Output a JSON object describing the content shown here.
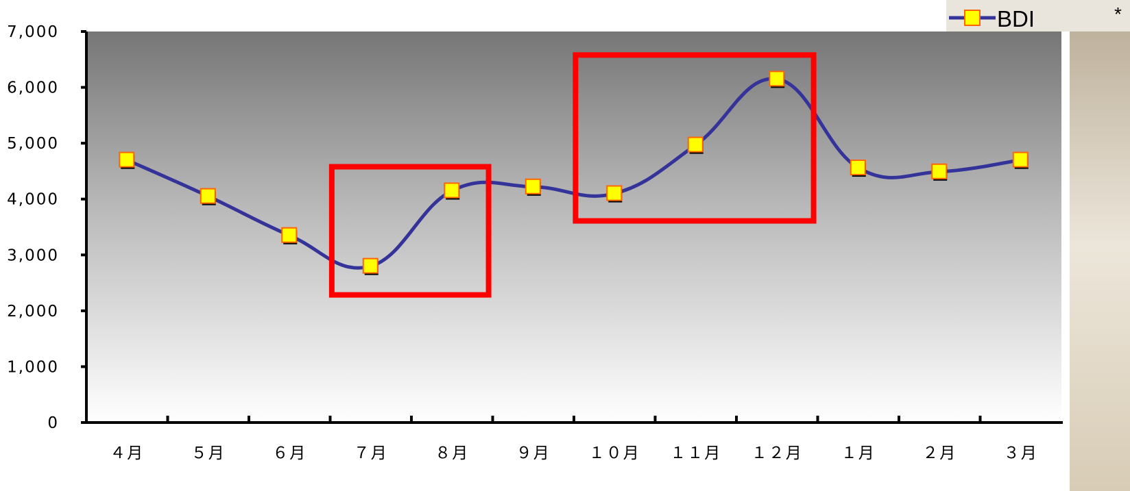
{
  "chart_data": {
    "type": "line",
    "title": "",
    "xlabel": "",
    "ylabel": "",
    "categories": [
      "4月",
      "5月",
      "6月",
      "7月",
      "8月",
      "9月",
      "10月",
      "11月",
      "12月",
      "1月",
      "2月",
      "3月"
    ],
    "category_display": [
      "４月",
      "５月",
      "６月",
      "７月",
      "８月",
      "９月",
      "１０月",
      "１１月",
      "１２月",
      "１月",
      "２月",
      "３月"
    ],
    "series": [
      {
        "name": "BDI",
        "values": [
          4700,
          4050,
          3350,
          2800,
          4150,
          4220,
          4100,
          4970,
          6150,
          4560,
          4490,
          4700
        ]
      }
    ],
    "ylim": [
      0,
      7000
    ],
    "y_ticks": [
      0,
      1000,
      2000,
      3000,
      4000,
      5000,
      6000,
      7000
    ],
    "y_tick_labels": [
      "0",
      "1,000",
      "2,000",
      "3,000",
      "4,000",
      "5,000",
      "6,000",
      "7,000"
    ],
    "grid": false,
    "legend_position": "top-right",
    "highlight_boxes": [
      {
        "from_category": "7月",
        "to_category": "8月"
      },
      {
        "from_category": "10月",
        "to_category": "12月"
      }
    ],
    "colors": {
      "line": "#333399",
      "marker_fill": "#FFFF00",
      "marker_stroke": "#FF6600",
      "highlight": "#FF0000",
      "plot_gradient_top": "#777777",
      "plot_gradient_bottom": "#FFFFFF"
    }
  },
  "legend": {
    "label": "BDI",
    "extra_mark": "*"
  }
}
